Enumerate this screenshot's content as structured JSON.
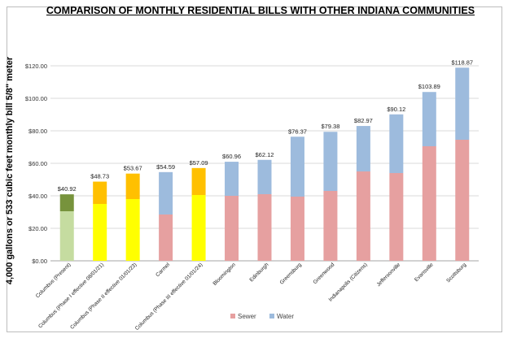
{
  "chart_data": {
    "type": "bar",
    "title": "COMPARISON OF MONTHLY RESIDENTIAL BILLS WITH OTHER INDIANA COMMUNITIES",
    "ylabel": "4,000 gallons or 533 cubic feet monthly bill 5/8\" meter",
    "xlabel": "",
    "ylim": [
      0,
      120
    ],
    "y_ticks": [
      "$0.00",
      "$20.00",
      "$40.00",
      "$60.00",
      "$80.00",
      "$100.00",
      "$120.00"
    ],
    "y_tick_values": [
      0,
      20,
      40,
      60,
      80,
      100,
      120
    ],
    "grid": true,
    "legend_position": "bottom",
    "categories": [
      "Columbus (Present)",
      "Columbus (Phase I effective 08/01/21)",
      "Columbus (Phase II effective 01/01/23)",
      "Carmel",
      "Columbus (Phase III effective 01/01/24)",
      "Bloomington",
      "Edinburgh",
      "Greensburg",
      "Greenwood",
      "Indianapolis (Citizens)",
      "Jeffersonville",
      "Evansville",
      "Scottsburg"
    ],
    "series": [
      {
        "name": "Sewer",
        "color": "#e6a0a0",
        "values": [
          30.5,
          35.0,
          38.0,
          28.5,
          40.5,
          40.0,
          41.0,
          39.5,
          43.0,
          55.0,
          54.0,
          70.5,
          74.5
        ]
      },
      {
        "name": "Water",
        "color": "#9dbbdd",
        "values": [
          10.42,
          13.73,
          15.67,
          26.09,
          16.59,
          20.96,
          21.12,
          36.87,
          36.38,
          27.97,
          36.12,
          33.39,
          44.37
        ]
      }
    ],
    "bar_colors": [
      [
        "#c5dca0",
        "#77933c"
      ],
      [
        "#ffff00",
        "#ffc000"
      ],
      [
        "#ffff00",
        "#ffc000"
      ],
      [
        "#e6a0a0",
        "#9dbbdd"
      ],
      [
        "#ffff00",
        "#ffc000"
      ],
      [
        "#e6a0a0",
        "#9dbbdd"
      ],
      [
        "#e6a0a0",
        "#9dbbdd"
      ],
      [
        "#e6a0a0",
        "#9dbbdd"
      ],
      [
        "#e6a0a0",
        "#9dbbdd"
      ],
      [
        "#e6a0a0",
        "#9dbbdd"
      ],
      [
        "#e6a0a0",
        "#9dbbdd"
      ],
      [
        "#e6a0a0",
        "#9dbbdd"
      ],
      [
        "#e6a0a0",
        "#9dbbdd"
      ]
    ],
    "totals": [
      40.92,
      48.73,
      53.67,
      54.59,
      57.09,
      60.96,
      62.12,
      76.37,
      79.38,
      82.97,
      90.12,
      103.89,
      118.87
    ],
    "total_labels": [
      "$40.92",
      "$48.73",
      "$53.67",
      "$54.59",
      "$57.09",
      "$60.96",
      "$62.12",
      "$76.37",
      "$79.38",
      "$82.97",
      "$90.12",
      "$103.89",
      "$118.87"
    ]
  }
}
